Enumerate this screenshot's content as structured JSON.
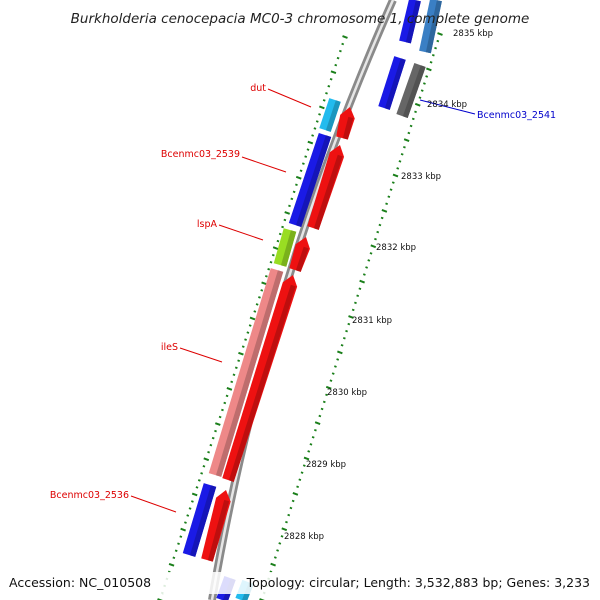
{
  "title": "Burkholderia cenocepacia MC0-3 chromosome 1, complete genome",
  "footer": {
    "accession": "Accession: NC_010508",
    "topology": "Topology: circular; Length: 3,532,883 bp; Genes: 3,233"
  },
  "colors": {
    "backbone": "#8c8c8c",
    "forward_cds": "#ee1111",
    "reverse_cds": "#1a1ae6",
    "rna_like": "#22bbee",
    "lspA_gene": "#99dd22",
    "ileS_gene": "#ee8888",
    "other_gene": "#666666",
    "tick": "#1a7f1a",
    "label_red": "#dd0000",
    "label_blue": "#0000cc"
  },
  "gene_labels": [
    {
      "text": "dut",
      "color": "#dd0000"
    },
    {
      "text": "Bcenmc03_2539",
      "color": "#dd0000"
    },
    {
      "text": "lspA",
      "color": "#dd0000"
    },
    {
      "text": "ileS",
      "color": "#dd0000"
    },
    {
      "text": "Bcenmc03_2536",
      "color": "#dd0000"
    },
    {
      "text": "Bcenmc03_2541",
      "color": "#0000cc"
    }
  ],
  "kbp_labels": [
    "2835 kbp",
    "2834 kbp",
    "2833 kbp",
    "2832 kbp",
    "2831 kbp",
    "2830 kbp",
    "2829 kbp",
    "2828 kbp"
  ]
}
